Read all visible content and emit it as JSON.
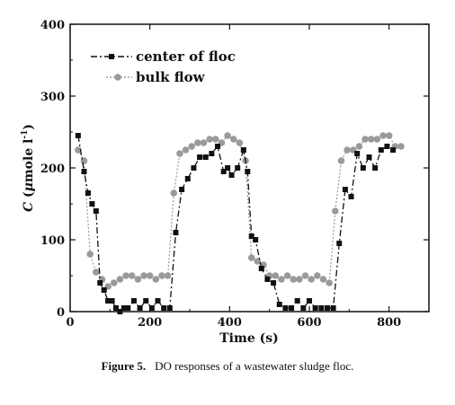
{
  "colors": {
    "center_of_floc": "#111111",
    "bulk_flow": "#9a9a9a",
    "axis": "#111111"
  },
  "caption": {
    "label": "Figure 5.",
    "text": "DO responses of a wastewater sludge floc."
  },
  "chart_data": {
    "type": "line",
    "xlabel": "Time (s)",
    "ylabel_parts": {
      "symbol": "C",
      "open": " (",
      "mu": "μ",
      "unit": "mole l",
      "exp": "-1",
      "close": ")"
    },
    "xlim": [
      0,
      900
    ],
    "ylim": [
      0,
      400
    ],
    "x_ticks": [
      0,
      200,
      400,
      600,
      800
    ],
    "y_ticks": [
      0,
      100,
      200,
      300,
      400
    ],
    "x_tick_labels": [
      "0",
      "200",
      "400",
      "600",
      "800"
    ],
    "y_tick_labels": [
      "0",
      "100",
      "200",
      "300",
      "400"
    ],
    "grid": false,
    "legend_position": "top-left",
    "series": [
      {
        "name": "center of floc",
        "marker": "square",
        "line": "dash-dot",
        "color": "#111111",
        "x": [
          20,
          35,
          45,
          55,
          65,
          75,
          85,
          95,
          105,
          115,
          125,
          135,
          145,
          160,
          175,
          190,
          205,
          220,
          235,
          250,
          265,
          280,
          295,
          310,
          325,
          340,
          355,
          370,
          385,
          395,
          405,
          420,
          435,
          445,
          455,
          465,
          480,
          495,
          510,
          525,
          540,
          555,
          570,
          585,
          600,
          615,
          630,
          645,
          660,
          675,
          690,
          705,
          720,
          735,
          750,
          765,
          780,
          795,
          810
        ],
        "y": [
          245,
          195,
          165,
          150,
          140,
          40,
          30,
          15,
          15,
          5,
          0,
          5,
          5,
          15,
          5,
          15,
          5,
          15,
          5,
          5,
          110,
          170,
          185,
          200,
          215,
          215,
          220,
          230,
          195,
          200,
          190,
          200,
          225,
          195,
          105,
          100,
          60,
          45,
          40,
          10,
          5,
          5,
          15,
          5,
          15,
          5,
          5,
          5,
          5,
          95,
          170,
          160,
          220,
          200,
          215,
          200,
          225,
          230,
          225
        ]
      },
      {
        "name": "bulk flow",
        "marker": "circle",
        "line": "dotted",
        "color": "#9a9a9a",
        "x": [
          20,
          35,
          50,
          65,
          80,
          95,
          110,
          125,
          140,
          155,
          170,
          185,
          200,
          215,
          230,
          245,
          260,
          275,
          290,
          305,
          320,
          335,
          350,
          365,
          380,
          395,
          410,
          425,
          440,
          455,
          470,
          485,
          500,
          515,
          530,
          545,
          560,
          575,
          590,
          605,
          620,
          635,
          650,
          665,
          680,
          695,
          710,
          725,
          740,
          755,
          770,
          785,
          800,
          815,
          830
        ],
        "y": [
          225,
          210,
          80,
          55,
          45,
          35,
          40,
          45,
          50,
          50,
          45,
          50,
          50,
          45,
          50,
          50,
          165,
          220,
          225,
          230,
          235,
          235,
          240,
          240,
          235,
          245,
          240,
          235,
          210,
          75,
          70,
          65,
          50,
          50,
          45,
          50,
          45,
          45,
          50,
          45,
          50,
          45,
          40,
          140,
          210,
          225,
          225,
          230,
          240,
          240,
          240,
          245,
          245,
          230,
          230
        ]
      }
    ]
  }
}
